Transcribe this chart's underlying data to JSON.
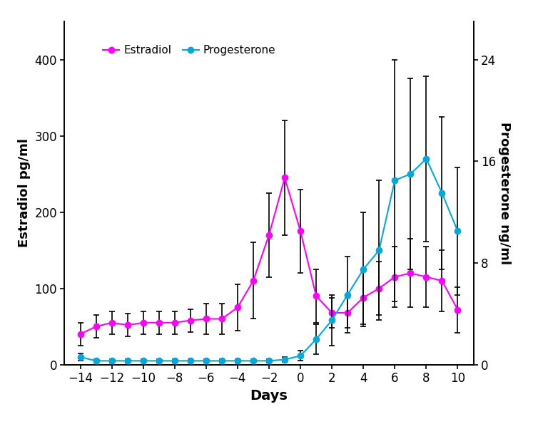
{
  "days": [
    -14,
    -13,
    -12,
    -11,
    -10,
    -9,
    -8,
    -7,
    -6,
    -5,
    -4,
    -3,
    -2,
    -1,
    0,
    1,
    2,
    3,
    4,
    5,
    6,
    7,
    8,
    9,
    10
  ],
  "estradiol": [
    40,
    50,
    55,
    52,
    55,
    55,
    55,
    58,
    60,
    60,
    75,
    110,
    170,
    245,
    175,
    90,
    68,
    68,
    88,
    100,
    115,
    120,
    115,
    110,
    72
  ],
  "estradiol_err": [
    15,
    15,
    15,
    15,
    15,
    15,
    15,
    15,
    20,
    20,
    30,
    50,
    55,
    75,
    55,
    35,
    20,
    20,
    35,
    35,
    40,
    45,
    40,
    40,
    30
  ],
  "progesterone": [
    0.6,
    0.3,
    0.3,
    0.3,
    0.3,
    0.3,
    0.3,
    0.3,
    0.3,
    0.3,
    0.3,
    0.3,
    0.3,
    0.4,
    0.7,
    2.0,
    3.5,
    5.5,
    7.5,
    9.0,
    14.5,
    15.0,
    16.2,
    13.5,
    10.5
  ],
  "progesterone_err": [
    0.3,
    0.15,
    0.15,
    0.15,
    0.15,
    0.15,
    0.15,
    0.15,
    0.15,
    0.15,
    0.15,
    0.15,
    0.15,
    0.2,
    0.4,
    1.2,
    2.0,
    3.0,
    4.5,
    5.5,
    9.5,
    7.5,
    6.5,
    6.0,
    5.0
  ],
  "estradiol_color": "#FF00FF",
  "progesterone_color": "#00AADD",
  "ylabel_left": "Estradiol pg/ml",
  "ylabel_right": "Progesterone ng/ml",
  "xlabel": "Days",
  "legend_estradiol": "Estradiol",
  "legend_progesterone": "Progesterone",
  "ylim_left": [
    0,
    450
  ],
  "ylim_right": [
    0,
    27
  ],
  "yticks_left": [
    0,
    100,
    200,
    300,
    400
  ],
  "yticks_right": [
    0,
    8,
    16,
    24
  ],
  "xticks": [
    -14,
    -12,
    -10,
    -8,
    -6,
    -4,
    -2,
    0,
    2,
    4,
    6,
    8,
    10
  ],
  "background_color": "#ffffff"
}
